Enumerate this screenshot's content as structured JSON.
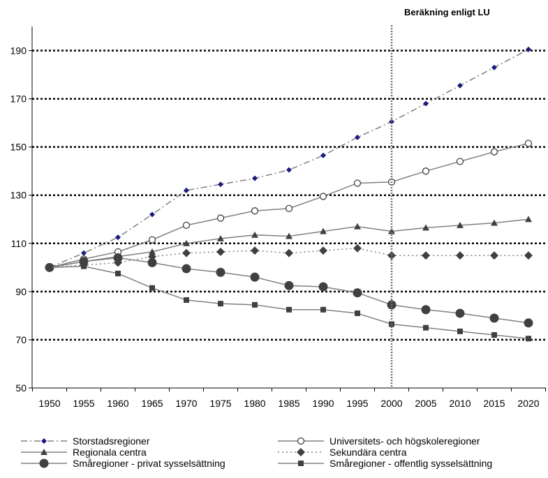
{
  "chart_data": {
    "type": "line",
    "title": "",
    "xlabel": "",
    "ylabel": "",
    "annotation": "Beräkning enligt LU",
    "annotation_x": 2000,
    "x": [
      1950,
      1955,
      1960,
      1965,
      1970,
      1975,
      1980,
      1985,
      1990,
      1995,
      2000,
      2005,
      2010,
      2015,
      2020
    ],
    "x_tick_labels": [
      "1950",
      "1955",
      "1960",
      "1965",
      "1970",
      "1975",
      "1980",
      "1985",
      "1990",
      "1995",
      "2000",
      "2005",
      "2010",
      "2015",
      "2020"
    ],
    "ylim": [
      50,
      200
    ],
    "y_ticks": [
      50,
      70,
      90,
      110,
      130,
      150,
      170,
      190
    ],
    "y_tick_labels": [
      "50",
      "70",
      "90",
      "110",
      "130",
      "150",
      "170",
      "190"
    ],
    "grid": "horizontal dotted",
    "legend_position": "bottom",
    "series": [
      {
        "name": "Storstadsregioner",
        "color": "#808080",
        "marker_color": "#1a1a80",
        "dash": "dashdot",
        "marker": "small-diamond",
        "values": [
          100,
          106,
          112.5,
          122,
          132,
          134.5,
          137,
          140.5,
          146.5,
          154,
          160.5,
          168,
          175.5,
          183,
          190.5
        ]
      },
      {
        "name": "Universitets- och högskoleregioner",
        "color": "#808080",
        "marker_color": "#808080",
        "dash": "solid",
        "marker": "open-circle",
        "values": [
          100,
          103.5,
          106.5,
          111.5,
          117.5,
          120.5,
          123.5,
          124.5,
          129.5,
          135,
          135.5,
          140,
          144,
          148,
          151.5
        ]
      },
      {
        "name": "Regionala centra",
        "color": "#808080",
        "marker_color": "#404040",
        "dash": "solid",
        "marker": "triangle",
        "values": [
          100,
          102.5,
          104.5,
          106.5,
          110,
          112,
          113.5,
          113,
          115,
          117,
          115,
          116.5,
          117.5,
          118.5,
          120
        ]
      },
      {
        "name": "Sekundära centra",
        "color": "#808080",
        "marker_color": "#404040",
        "dash": "dotted",
        "marker": "diamond",
        "values": [
          100,
          101,
          102,
          104.5,
          106,
          106.5,
          107,
          106,
          107,
          108,
          105,
          105,
          105,
          105,
          105
        ]
      },
      {
        "name": "Småregioner - privat sysselsättning",
        "color": "#808080",
        "marker_color": "#404040",
        "dash": "solid",
        "marker": "large-circle",
        "values": [
          100,
          102.5,
          104,
          102,
          99.5,
          98,
          96,
          92.5,
          92,
          89.5,
          84.5,
          82.5,
          81,
          79,
          77
        ]
      },
      {
        "name": "Småregioner - offentlig sysselsättning",
        "color": "#808080",
        "marker_color": "#404040",
        "dash": "solid",
        "marker": "square",
        "values": [
          100,
          100.5,
          97.5,
          91.5,
          86.5,
          85,
          84.5,
          82.5,
          82.5,
          81,
          76.5,
          75,
          73.5,
          72,
          70.5
        ]
      }
    ]
  }
}
